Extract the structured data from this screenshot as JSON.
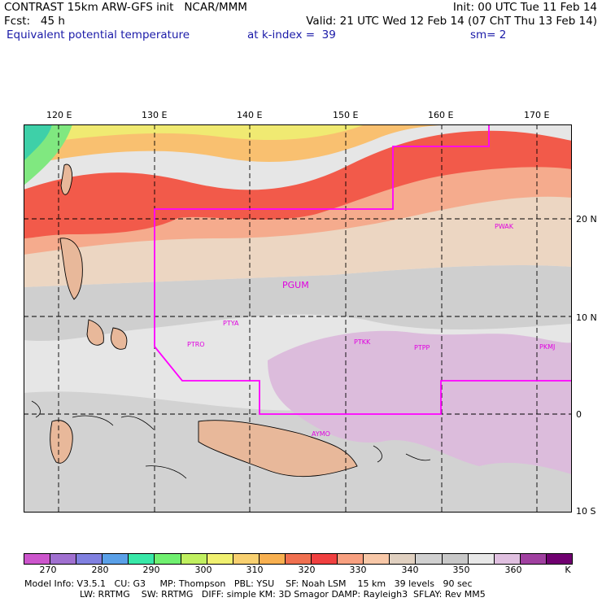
{
  "header": {
    "line1_left": "CONTRAST 15km ARW-GFS init   NCAR/MMM",
    "line1_right": "Init: 00 UTC Tue 11 Feb 14",
    "line2_left": "Fcst:   45 h",
    "line2_right": "Valid: 21 UTC Wed 12 Feb 14 (07 ChT Thu 13 Feb 14)",
    "line3_field": "Equivalent potential temperature",
    "line3_level": "at k-index =  39",
    "line3_sm": "sm= 2"
  },
  "map": {
    "lon_labels": [
      "120 E",
      "130 E",
      "140 E",
      "150 E",
      "160 E",
      "170 E"
    ],
    "lat_labels": [
      "20 N",
      "10 N",
      "0",
      "10 S"
    ],
    "stations": [
      "PWAK",
      "PGUM",
      "PTYA",
      "PTRO",
      "PTKK",
      "PTPP",
      "PKMJ",
      "AYMO"
    ],
    "colors": {
      "station": "#e000e0",
      "boundary": "#ff00ff",
      "coast": "#000000"
    }
  },
  "colorbar": {
    "labels": [
      "270",
      "280",
      "290",
      "300",
      "310",
      "320",
      "330",
      "340",
      "350",
      "360"
    ],
    "unit": "K",
    "colors": [
      "#cc55cc",
      "#a070d0",
      "#8080e0",
      "#5aa0e8",
      "#38e8a8",
      "#70f070",
      "#c0f060",
      "#f0f070",
      "#f8d070",
      "#f8b050",
      "#f07050",
      "#f04040",
      "#f8a080",
      "#f8c8a8",
      "#e0d0c0",
      "#d0d0d0",
      "#c8c8c8",
      "#e8e8e8",
      "#e0c0e0",
      "#a040a0",
      "#700070"
    ]
  },
  "footer": {
    "line1": "Model Info: V3.5.1   CU: G3     MP: Thompson   PBL: YSU    SF: Noah LSM    15 km   39 levels   90 sec",
    "line2": "LW: RRTMG    SW: RRTMG   DIFF: simple KM: 3D Smagor DAMP: Rayleigh3  SFLAY: Rev MM5"
  }
}
